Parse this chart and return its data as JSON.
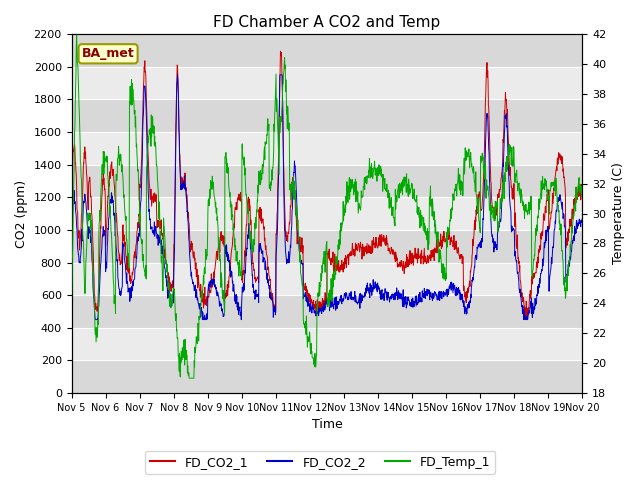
{
  "title": "FD Chamber A CO2 and Temp",
  "xlabel": "Time",
  "ylabel_left": "CO2 (ppm)",
  "ylabel_right": "Temperature (C)",
  "xlim": [
    0,
    15
  ],
  "ylim_left": [
    0,
    2200
  ],
  "ylim_right": [
    18,
    42
  ],
  "yticks_left": [
    0,
    200,
    400,
    600,
    800,
    1000,
    1200,
    1400,
    1600,
    1800,
    2000,
    2200
  ],
  "yticks_right": [
    18,
    20,
    22,
    24,
    26,
    28,
    30,
    32,
    34,
    36,
    38,
    40,
    42
  ],
  "xtick_labels": [
    "Nov 5",
    "Nov 6",
    "Nov 7",
    "Nov 8",
    "Nov 9",
    "Nov 10",
    "Nov 11",
    "Nov 12",
    "Nov 13",
    "Nov 14",
    "Nov 15",
    "Nov 16",
    "Nov 17",
    "Nov 18",
    "Nov 19",
    "Nov 20"
  ],
  "color_co2_1": "#cc0000",
  "color_co2_2": "#0000cc",
  "color_temp": "#00aa00",
  "legend_label_1": "FD_CO2_1",
  "legend_label_2": "FD_CO2_2",
  "legend_label_3": "FD_Temp_1",
  "annotation_text": "BA_met",
  "band_colors": [
    "#d8d8d8",
    "#ebebeb"
  ],
  "bg_color": "#d8d8d8",
  "fig_facecolor": "#f0f0f0"
}
